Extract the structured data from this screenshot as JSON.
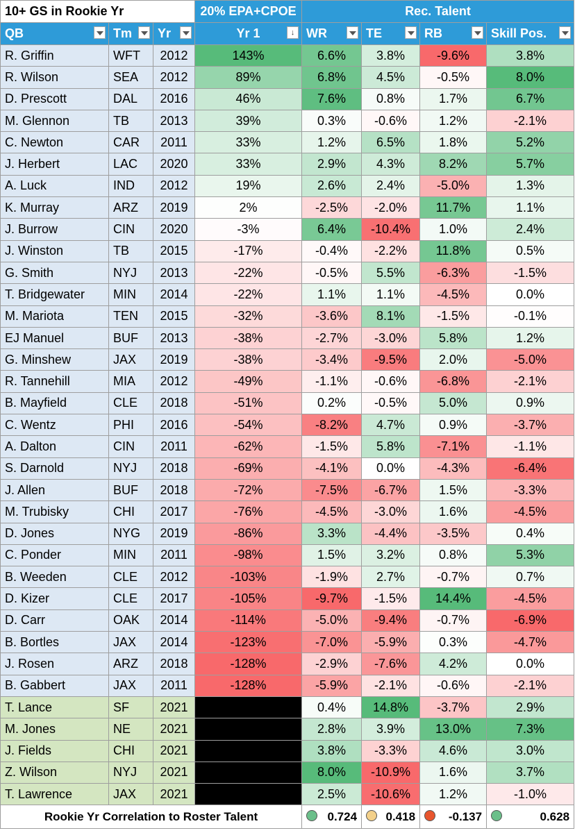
{
  "title": "10+ GS in Rookie Yr",
  "bands": {
    "epa": "20% EPA+CPOE",
    "rec": "Rec. Talent"
  },
  "headers": {
    "qb": "QB",
    "tm": "Tm",
    "yr": "Yr",
    "yr1": "Yr 1",
    "wr": "WR",
    "te": "TE",
    "rb": "RB",
    "skill": "Skill Pos."
  },
  "rows": [
    {
      "qb": "R. Griffin",
      "tm": "WFT",
      "yr": "2012",
      "yr1": "143%",
      "wr": "6.6%",
      "te": "3.8%",
      "rb": "-9.6%",
      "skill": "3.8%"
    },
    {
      "qb": "R. Wilson",
      "tm": "SEA",
      "yr": "2012",
      "yr1": "89%",
      "wr": "6.8%",
      "te": "4.5%",
      "rb": "-0.5%",
      "skill": "8.0%"
    },
    {
      "qb": "D. Prescott",
      "tm": "DAL",
      "yr": "2016",
      "yr1": "46%",
      "wr": "7.6%",
      "te": "0.8%",
      "rb": "1.7%",
      "skill": "6.7%"
    },
    {
      "qb": "M. Glennon",
      "tm": "TB",
      "yr": "2013",
      "yr1": "39%",
      "wr": "0.3%",
      "te": "-0.6%",
      "rb": "1.2%",
      "skill": "-2.1%"
    },
    {
      "qb": "C. Newton",
      "tm": "CAR",
      "yr": "2011",
      "yr1": "33%",
      "wr": "1.2%",
      "te": "6.5%",
      "rb": "1.8%",
      "skill": "5.2%"
    },
    {
      "qb": "J. Herbert",
      "tm": "LAC",
      "yr": "2020",
      "yr1": "33%",
      "wr": "2.9%",
      "te": "4.3%",
      "rb": "8.2%",
      "skill": "5.7%"
    },
    {
      "qb": "A. Luck",
      "tm": "IND",
      "yr": "2012",
      "yr1": "19%",
      "wr": "2.6%",
      "te": "2.4%",
      "rb": "-5.0%",
      "skill": "1.3%"
    },
    {
      "qb": "K. Murray",
      "tm": "ARZ",
      "yr": "2019",
      "yr1": "2%",
      "wr": "-2.5%",
      "te": "-2.0%",
      "rb": "11.7%",
      "skill": "1.1%"
    },
    {
      "qb": "J. Burrow",
      "tm": "CIN",
      "yr": "2020",
      "yr1": "-3%",
      "wr": "6.4%",
      "te": "-10.4%",
      "rb": "1.0%",
      "skill": "2.4%"
    },
    {
      "qb": "J. Winston",
      "tm": "TB",
      "yr": "2015",
      "yr1": "-17%",
      "wr": "-0.4%",
      "te": "-2.2%",
      "rb": "11.8%",
      "skill": "0.5%"
    },
    {
      "qb": "G. Smith",
      "tm": "NYJ",
      "yr": "2013",
      "yr1": "-22%",
      "wr": "-0.5%",
      "te": "5.5%",
      "rb": "-6.3%",
      "skill": "-1.5%"
    },
    {
      "qb": "T. Bridgewater",
      "tm": "MIN",
      "yr": "2014",
      "yr1": "-22%",
      "wr": "1.1%",
      "te": "1.1%",
      "rb": "-4.5%",
      "skill": "0.0%"
    },
    {
      "qb": "M. Mariota",
      "tm": "TEN",
      "yr": "2015",
      "yr1": "-32%",
      "wr": "-3.6%",
      "te": "8.1%",
      "rb": "-1.5%",
      "skill": "-0.1%"
    },
    {
      "qb": "EJ Manuel",
      "tm": "BUF",
      "yr": "2013",
      "yr1": "-38%",
      "wr": "-2.7%",
      "te": "-3.0%",
      "rb": "5.8%",
      "skill": "1.2%"
    },
    {
      "qb": "G. Minshew",
      "tm": "JAX",
      "yr": "2019",
      "yr1": "-38%",
      "wr": "-3.4%",
      "te": "-9.5%",
      "rb": "2.0%",
      "skill": "-5.0%"
    },
    {
      "qb": "R. Tannehill",
      "tm": "MIA",
      "yr": "2012",
      "yr1": "-49%",
      "wr": "-1.1%",
      "te": "-0.6%",
      "rb": "-6.8%",
      "skill": "-2.1%"
    },
    {
      "qb": "B. Mayfield",
      "tm": "CLE",
      "yr": "2018",
      "yr1": "-51%",
      "wr": "0.2%",
      "te": "-0.5%",
      "rb": "5.0%",
      "skill": "0.9%"
    },
    {
      "qb": "C. Wentz",
      "tm": "PHI",
      "yr": "2016",
      "yr1": "-54%",
      "wr": "-8.2%",
      "te": "4.7%",
      "rb": "0.9%",
      "skill": "-3.7%"
    },
    {
      "qb": "A. Dalton",
      "tm": "CIN",
      "yr": "2011",
      "yr1": "-62%",
      "wr": "-1.5%",
      "te": "5.8%",
      "rb": "-7.1%",
      "skill": "-1.1%"
    },
    {
      "qb": "S. Darnold",
      "tm": "NYJ",
      "yr": "2018",
      "yr1": "-69%",
      "wr": "-4.1%",
      "te": "0.0%",
      "rb": "-4.3%",
      "skill": "-6.4%"
    },
    {
      "qb": "J. Allen",
      "tm": "BUF",
      "yr": "2018",
      "yr1": "-72%",
      "wr": "-7.5%",
      "te": "-6.7%",
      "rb": "1.5%",
      "skill": "-3.3%"
    },
    {
      "qb": "M. Trubisky",
      "tm": "CHI",
      "yr": "2017",
      "yr1": "-76%",
      "wr": "-4.5%",
      "te": "-3.0%",
      "rb": "1.6%",
      "skill": "-4.5%"
    },
    {
      "qb": "D. Jones",
      "tm": "NYG",
      "yr": "2019",
      "yr1": "-86%",
      "wr": "3.3%",
      "te": "-4.4%",
      "rb": "-3.5%",
      "skill": "0.4%"
    },
    {
      "qb": "C. Ponder",
      "tm": "MIN",
      "yr": "2011",
      "yr1": "-98%",
      "wr": "1.5%",
      "te": "3.2%",
      "rb": "0.8%",
      "skill": "5.3%"
    },
    {
      "qb": "B. Weeden",
      "tm": "CLE",
      "yr": "2012",
      "yr1": "-103%",
      "wr": "-1.9%",
      "te": "2.7%",
      "rb": "-0.7%",
      "skill": "0.7%"
    },
    {
      "qb": "D. Kizer",
      "tm": "CLE",
      "yr": "2017",
      "yr1": "-105%",
      "wr": "-9.7%",
      "te": "-1.5%",
      "rb": "14.4%",
      "skill": "-4.5%"
    },
    {
      "qb": "D. Carr",
      "tm": "OAK",
      "yr": "2014",
      "yr1": "-114%",
      "wr": "-5.0%",
      "te": "-9.4%",
      "rb": "-0.7%",
      "skill": "-6.9%"
    },
    {
      "qb": "B. Bortles",
      "tm": "JAX",
      "yr": "2014",
      "yr1": "-123%",
      "wr": "-7.0%",
      "te": "-5.9%",
      "rb": "0.3%",
      "skill": "-4.7%"
    },
    {
      "qb": "J. Rosen",
      "tm": "ARZ",
      "yr": "2018",
      "yr1": "-128%",
      "wr": "-2.9%",
      "te": "-7.6%",
      "rb": "4.2%",
      "skill": "0.0%"
    },
    {
      "qb": "B. Gabbert",
      "tm": "JAX",
      "yr": "2011",
      "yr1": "-128%",
      "wr": "-5.9%",
      "te": "-2.1%",
      "rb": "-0.6%",
      "skill": "-2.1%"
    },
    {
      "qb": "T. Lance",
      "tm": "SF",
      "yr": "2021",
      "yr1": "",
      "wr": "0.4%",
      "te": "14.8%",
      "rb": "-3.7%",
      "skill": "2.9%",
      "rookie": true
    },
    {
      "qb": "M. Jones",
      "tm": "NE",
      "yr": "2021",
      "yr1": "",
      "wr": "2.8%",
      "te": "3.9%",
      "rb": "13.0%",
      "skill": "7.3%",
      "rookie": true
    },
    {
      "qb": "J. Fields",
      "tm": "CHI",
      "yr": "2021",
      "yr1": "",
      "wr": "3.8%",
      "te": "-3.3%",
      "rb": "4.6%",
      "skill": "3.0%",
      "rookie": true
    },
    {
      "qb": "Z. Wilson",
      "tm": "NYJ",
      "yr": "2021",
      "yr1": "",
      "wr": "8.0%",
      "te": "-10.9%",
      "rb": "1.6%",
      "skill": "3.7%",
      "rookie": true
    },
    {
      "qb": "T. Lawrence",
      "tm": "JAX",
      "yr": "2021",
      "yr1": "",
      "wr": "2.5%",
      "te": "-10.6%",
      "rb": "1.2%",
      "skill": "-1.0%",
      "rookie": true
    }
  ],
  "correlation": {
    "label": "Rookie Yr Correlation to Roster Talent",
    "wr": "0.724",
    "te": "0.418",
    "rb": "-0.137",
    "skill": "0.628",
    "dot_colors": {
      "wr": "#6bbf8a",
      "te": "#f3d08a",
      "rb": "#e8552e",
      "skill": "#6bbf8a"
    }
  },
  "colors": {
    "header_blue": "#2e9bd8",
    "qb_cell": "#dde8f4",
    "rookie_cell": "#d4e6c1",
    "scale_pos": "#57bb7a",
    "scale_mid": "#ffffff",
    "scale_neg": "#f8696b"
  }
}
